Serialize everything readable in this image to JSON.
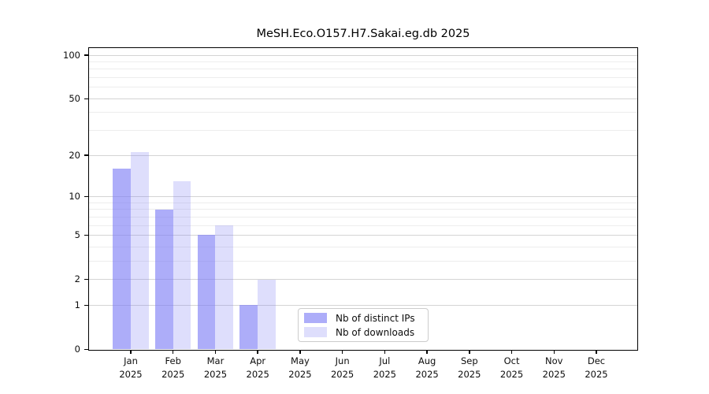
{
  "chart_data": {
    "type": "bar",
    "title": "MeSH.Eco.O157.H7.Sakai.eg.db 2025",
    "xlabel": "",
    "ylabel": "",
    "x_year_label": "2025",
    "categories": [
      "Jan",
      "Feb",
      "Mar",
      "Apr",
      "May",
      "Jun",
      "Jul",
      "Aug",
      "Sep",
      "Oct",
      "Nov",
      "Dec"
    ],
    "series": [
      {
        "name": "Nb of distinct IPs",
        "key": "distinct-ips",
        "color": "#7a7af5",
        "opacity": 0.62,
        "values": [
          16,
          8,
          5,
          1,
          0,
          0,
          0,
          0,
          0,
          0,
          0,
          0
        ]
      },
      {
        "name": "Nb of downloads",
        "key": "downloads",
        "color": "#7a7af5",
        "opacity": 0.25,
        "values": [
          21,
          13,
          6,
          2,
          0,
          0,
          0,
          0,
          0,
          0,
          0,
          0
        ]
      }
    ],
    "yscale": "log1p",
    "ylim": [
      0,
      113
    ],
    "y_major_ticks": [
      0,
      1,
      2,
      5,
      10,
      20,
      50,
      100
    ],
    "y_minor_gridlines": [
      3,
      4,
      6,
      7,
      8,
      9,
      30,
      40,
      60,
      70,
      80,
      90
    ],
    "grid": "horizontal",
    "legend_position": "inside-bottom-center-left"
  },
  "colors": {
    "background": "#ffffff",
    "spine": "#000000",
    "major_grid": "#d4d4d4",
    "minor_grid": "#ededed",
    "bar_distinct_ips_rendered": "#a9aaf6",
    "bar_downloads_rendered": "#dbdcfa"
  }
}
